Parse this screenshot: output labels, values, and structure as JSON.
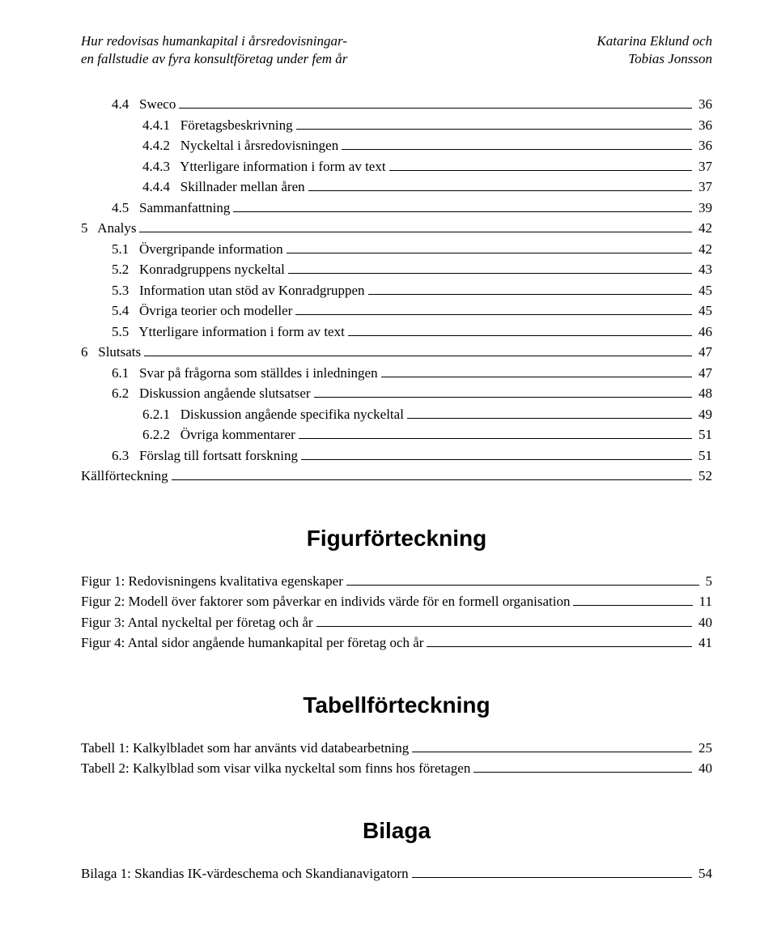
{
  "header": {
    "leftLine1": "Hur redovisas humankapital i årsredovisningar-",
    "leftLine2": "en fallstudie av fyra konsultföretag under fem år",
    "rightLine1": "Katarina Eklund och",
    "rightLine2": "Tobias Jonsson"
  },
  "toc": [
    {
      "indent": 1,
      "num": "4.4",
      "title": "Sweco",
      "page": "36"
    },
    {
      "indent": 2,
      "num": "4.4.1",
      "title": "Företagsbeskrivning",
      "page": "36"
    },
    {
      "indent": 2,
      "num": "4.4.2",
      "title": "Nyckeltal i årsredovisningen",
      "page": "36"
    },
    {
      "indent": 2,
      "num": "4.4.3",
      "title": "Ytterligare information i form av text",
      "page": "37"
    },
    {
      "indent": 2,
      "num": "4.4.4",
      "title": "Skillnader mellan åren",
      "page": "37"
    },
    {
      "indent": 1,
      "num": "4.5",
      "title": "Sammanfattning",
      "page": "39"
    },
    {
      "indent": 0,
      "num": "5",
      "title": "Analys",
      "page": "42"
    },
    {
      "indent": 1,
      "num": "5.1",
      "title": "Övergripande information",
      "page": "42"
    },
    {
      "indent": 1,
      "num": "5.2",
      "title": "Konradgruppens nyckeltal",
      "page": "43"
    },
    {
      "indent": 1,
      "num": "5.3",
      "title": "Information utan stöd av Konradgruppen",
      "page": "45"
    },
    {
      "indent": 1,
      "num": "5.4",
      "title": "Övriga teorier och modeller",
      "page": "45"
    },
    {
      "indent": 1,
      "num": "5.5",
      "title": "Ytterligare information i form av text",
      "page": "46"
    },
    {
      "indent": 0,
      "num": "6",
      "title": "Slutsats",
      "page": "47"
    },
    {
      "indent": 1,
      "num": "6.1",
      "title": "Svar på frågorna som ställdes i inledningen",
      "page": "47"
    },
    {
      "indent": 1,
      "num": "6.2",
      "title": "Diskussion angående slutsatser",
      "page": "48"
    },
    {
      "indent": 2,
      "num": "6.2.1",
      "title": "Diskussion angående specifika nyckeltal",
      "page": "49"
    },
    {
      "indent": 2,
      "num": "6.2.2",
      "title": "Övriga kommentarer",
      "page": "51"
    },
    {
      "indent": 1,
      "num": "6.3",
      "title": "Förslag till fortsatt forskning",
      "page": "51"
    },
    {
      "indent": 0,
      "num": "",
      "title": "Källförteckning",
      "page": "52"
    }
  ],
  "sections": {
    "figurHeading": "Figurförteckning",
    "figures": [
      {
        "label": "Figur 1: Redovisningens kvalitativa egenskaper",
        "page": "5"
      },
      {
        "label": "Figur 2: Modell över faktorer som påverkar en individs värde för en formell organisation",
        "page": "11"
      },
      {
        "label": "Figur 3: Antal nyckeltal per företag och år",
        "page": "40"
      },
      {
        "label": "Figur 4: Antal sidor angående humankapital per företag och år",
        "page": "41"
      }
    ],
    "tabellHeading": "Tabellförteckning",
    "tables": [
      {
        "label": "Tabell 1: Kalkylbladet som har använts vid databearbetning",
        "page": "25"
      },
      {
        "label": "Tabell 2: Kalkylblad som visar vilka nyckeltal som finns hos företagen",
        "page": "40"
      }
    ],
    "bilagaHeading": "Bilaga",
    "bilagor": [
      {
        "label": "Bilaga 1: Skandias IK-värdeschema och Skandianavigatorn",
        "page": "54"
      }
    ]
  },
  "style": {
    "fontBody": "Times New Roman",
    "fontHeading": "Arial",
    "pageBg": "#ffffff",
    "textColor": "#000000",
    "bodyFontSizePt": 12,
    "headingFontSizePt": 20
  }
}
